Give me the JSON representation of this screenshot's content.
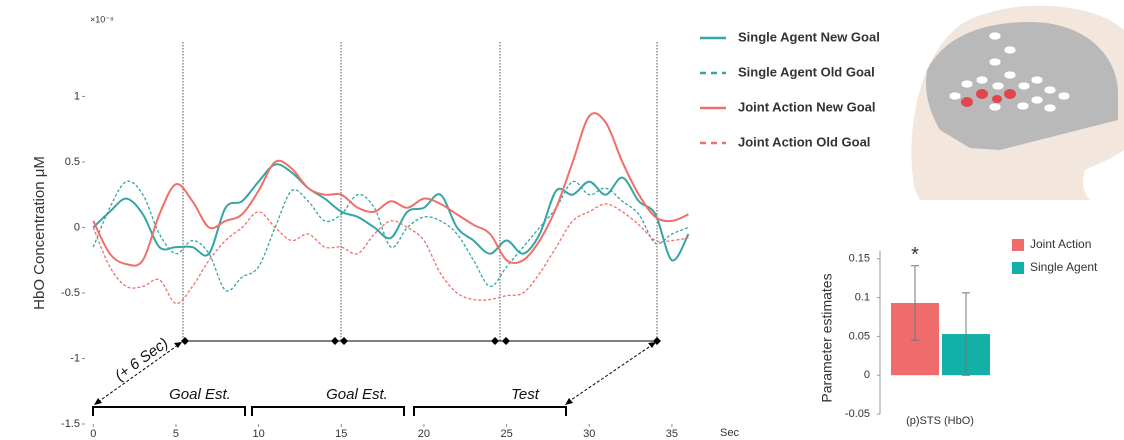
{
  "chart_data": [
    {
      "type": "line",
      "y_label": "HbO Concentration μM",
      "y_multiplier": "×10⁻⁸",
      "x_unit": "Sec",
      "x": [
        0,
        1,
        2,
        3,
        4,
        5,
        6,
        7,
        8,
        9,
        10,
        11,
        12,
        13,
        14,
        15,
        16,
        17,
        18,
        19,
        20,
        21,
        22,
        23,
        24,
        25,
        26,
        27,
        28,
        29,
        30,
        31,
        32,
        33,
        34,
        35,
        36
      ],
      "xlim": [
        -0.5,
        37
      ],
      "xticks": [
        0,
        5,
        10,
        15,
        20,
        25,
        30,
        35
      ],
      "ylim": [
        -1.5,
        1.4
      ],
      "yticks": [
        -1.5,
        -1,
        -0.5,
        0,
        0.5,
        1
      ],
      "series": [
        {
          "name": "Single Agent New Goal",
          "color": "#35a6a3",
          "dashed": false,
          "values": [
            0,
            0.12,
            0.22,
            0.1,
            -0.15,
            -0.15,
            -0.15,
            -0.2,
            0.15,
            0.2,
            0.35,
            0.48,
            0.42,
            0.3,
            0.22,
            0.12,
            0.08,
            0,
            -0.08,
            0.12,
            0.15,
            0.25,
            0,
            -0.1,
            -0.2,
            -0.1,
            -0.2,
            -0.05,
            0.28,
            0.25,
            0.35,
            0.25,
            0.38,
            0.2,
            0.1,
            -0.25,
            -0.05
          ]
        },
        {
          "name": "Single Agent Old Goal",
          "color": "#35a6a3",
          "dashed": true,
          "values": [
            -0.15,
            0.15,
            0.35,
            0.25,
            -0.05,
            -0.2,
            -0.1,
            -0.2,
            -0.48,
            -0.38,
            -0.3,
            0,
            0.28,
            0.2,
            0.05,
            0.1,
            0.25,
            0.15,
            -0.15,
            0,
            0.08,
            0.05,
            -0.05,
            -0.25,
            -0.45,
            -0.3,
            -0.15,
            0,
            0.15,
            0.35,
            0.25,
            0.3,
            0.2,
            0.1,
            -0.12,
            -0.05,
            0
          ]
        },
        {
          "name": "Joint Action New Goal",
          "color": "#ef6f6b",
          "dashed": false,
          "values": [
            0.05,
            -0.2,
            -0.28,
            -0.25,
            0.1,
            0.33,
            0.2,
            0,
            0.05,
            0.1,
            0.28,
            0.5,
            0.45,
            0.3,
            0.25,
            0.25,
            0.15,
            0.12,
            0.2,
            0.15,
            0.22,
            0.18,
            0.1,
            0.02,
            -0.05,
            -0.25,
            -0.25,
            -0.1,
            0.15,
            0.5,
            0.85,
            0.8,
            0.5,
            0.25,
            0.08,
            0.05,
            0.1
          ]
        },
        {
          "name": "Joint Action Old Goal",
          "color": "#ef6f6b",
          "dashed": true,
          "values": [
            0,
            -0.3,
            -0.45,
            -0.45,
            -0.4,
            -0.58,
            -0.45,
            -0.25,
            -0.1,
            0,
            0.12,
            0,
            -0.1,
            -0.05,
            -0.15,
            -0.15,
            -0.2,
            -0.05,
            0.05,
            0,
            -0.1,
            -0.35,
            -0.5,
            -0.55,
            -0.55,
            -0.52,
            -0.5,
            -0.35,
            -0.15,
            0.05,
            0.12,
            0.18,
            0.12,
            0.02,
            -0.1,
            -0.1,
            -0.08
          ]
        }
      ],
      "annotations": [
        "(+ 6 Sec)",
        "Goal Est.",
        "Goal Est.",
        "Test"
      ]
    },
    {
      "type": "bar",
      "y_label": "Parameter estimates",
      "categories": [
        "(p)STS (HbO)"
      ],
      "ylim": [
        -0.05,
        0.16
      ],
      "yticks": [
        -0.05,
        0,
        0.05,
        0.1,
        0.15
      ],
      "series": [
        {
          "name": "Joint Action",
          "color": "#f06b6b",
          "values": [
            0.093
          ],
          "errors": [
            0.048
          ]
        },
        {
          "name": "Single Agent",
          "color": "#12b0a6",
          "values": [
            0.053
          ],
          "errors": [
            0.053
          ]
        }
      ],
      "annotation": "*"
    }
  ]
}
